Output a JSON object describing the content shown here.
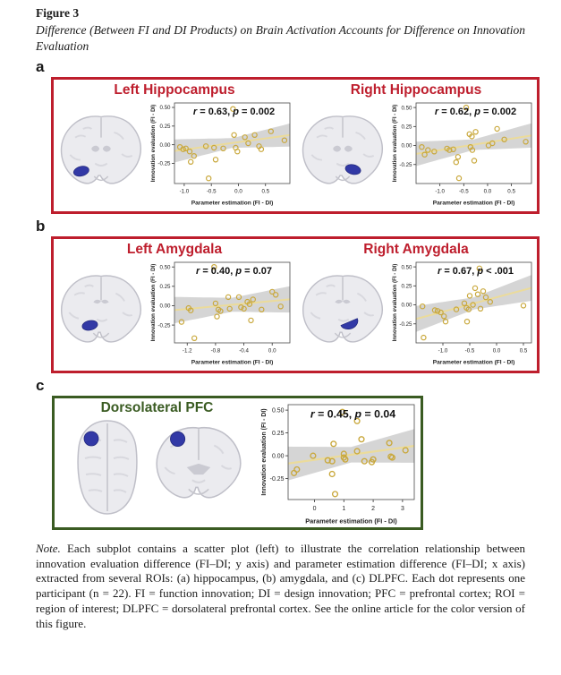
{
  "header": {
    "figure_label": "Figure 3",
    "figure_caption": "Difference (Between FI and DI Products) on Brain Activation Accounts for Difference on Innovation Evaluation"
  },
  "panels": [
    {
      "label": "a",
      "accent": "red",
      "charts": [
        0,
        1
      ]
    },
    {
      "label": "b",
      "accent": "red",
      "charts": [
        2,
        3
      ]
    },
    {
      "label": "c",
      "accent": "green",
      "charts": [
        4
      ]
    }
  ],
  "colors": {
    "accent-red": "#BE1E2D",
    "accent-green": "#3A5B22",
    "point": "#C9A83C",
    "fit-line": "#EBDB9B",
    "band": "#D3D3D3",
    "roi": "#3239A6"
  },
  "chart_data": [
    {
      "id": "left-hippocampus",
      "type": "scatter",
      "title": "Left Hippocampus",
      "stats": "r = 0.63, p = 0.002",
      "xlabel": "Parameter estimation (FI - DI)",
      "ylabel": "Innovation evaluation (FI - DI)",
      "xlim": [
        -1.18,
        0.95
      ],
      "ylim": [
        -0.52,
        0.56
      ],
      "xticks": [
        -1.0,
        -0.5,
        0.0,
        0.5
      ],
      "xtick_labels": [
        "-1.0",
        "-0.5",
        "0.0",
        "0.5"
      ],
      "yticks": [
        0.5,
        0.25,
        0.0,
        -0.25
      ],
      "ytick_labels": [
        "0.50",
        "0.25",
        "0.00",
        "-0.25"
      ],
      "fit": {
        "slope": 0.1,
        "intercept": 0.035,
        "band_mid": 0.065,
        "band_end": 0.155
      },
      "points": [
        [
          -1.08,
          -0.03
        ],
        [
          -1.02,
          -0.06
        ],
        [
          -0.97,
          -0.05
        ],
        [
          -0.9,
          -0.09
        ],
        [
          -0.88,
          -0.23
        ],
        [
          -0.82,
          -0.15
        ],
        [
          -0.6,
          -0.02
        ],
        [
          -0.55,
          -0.45
        ],
        [
          -0.45,
          -0.04
        ],
        [
          -0.42,
          -0.2
        ],
        [
          -0.28,
          -0.05
        ],
        [
          -0.1,
          0.48
        ],
        [
          -0.08,
          0.13
        ],
        [
          -0.05,
          -0.04
        ],
        [
          -0.02,
          -0.09
        ],
        [
          0.12,
          0.1
        ],
        [
          0.18,
          0.02
        ],
        [
          0.3,
          0.13
        ],
        [
          0.38,
          -0.02
        ],
        [
          0.42,
          -0.06
        ],
        [
          0.6,
          0.18
        ],
        [
          0.85,
          0.06
        ]
      ],
      "brain_view": "coronal",
      "roi": "left hippocampus"
    },
    {
      "id": "right-hippocampus",
      "type": "scatter",
      "title": "Right Hippocampus",
      "stats": "r = 0.62, p = 0.002",
      "xlabel": "Parameter estimation (FI - DI)",
      "ylabel": "Innovation evaluation (FI - DI)",
      "xlim": [
        -1.5,
        0.92
      ],
      "ylim": [
        -0.5,
        0.56
      ],
      "xticks": [
        -1.0,
        -0.5,
        0.0,
        0.5
      ],
      "xtick_labels": [
        "-1.0",
        "-0.5",
        "0.0",
        "0.5"
      ],
      "yticks": [
        0.5,
        0.25,
        0.0,
        -0.25
      ],
      "ytick_labels": [
        "0.50",
        "0.25",
        "0.00",
        "-0.25"
      ],
      "fit": {
        "slope": 0.1,
        "intercept": 0.04,
        "band_mid": 0.07,
        "band_end": 0.16
      },
      "points": [
        [
          -1.38,
          -0.02
        ],
        [
          -1.32,
          -0.12
        ],
        [
          -1.25,
          -0.06
        ],
        [
          -1.12,
          -0.08
        ],
        [
          -0.85,
          -0.04
        ],
        [
          -0.8,
          -0.06
        ],
        [
          -0.72,
          -0.05
        ],
        [
          -0.62,
          -0.15
        ],
        [
          -0.66,
          -0.22
        ],
        [
          -0.6,
          -0.43
        ],
        [
          -0.45,
          0.5
        ],
        [
          -0.38,
          0.15
        ],
        [
          -0.33,
          0.12
        ],
        [
          -0.36,
          -0.02
        ],
        [
          -0.32,
          -0.06
        ],
        [
          -0.25,
          0.18
        ],
        [
          -0.28,
          -0.2
        ],
        [
          0.02,
          0.0
        ],
        [
          0.1,
          0.03
        ],
        [
          0.2,
          0.22
        ],
        [
          0.35,
          0.08
        ],
        [
          0.8,
          0.05
        ]
      ],
      "brain_view": "coronal",
      "roi": "right hippocampus"
    },
    {
      "id": "left-amygdala",
      "type": "scatter",
      "title": "Left Amygdala",
      "stats": "r = 0.40, p = 0.07",
      "xlabel": "Parameter estimation (FI - DI)",
      "ylabel": "Innovation evaluation (FI - DI)",
      "xlim": [
        -1.38,
        0.25
      ],
      "ylim": [
        -0.48,
        0.56
      ],
      "xticks": [
        -1.2,
        -0.8,
        -0.4,
        0.0
      ],
      "xtick_labels": [
        "-1.2",
        "-0.8",
        "-0.4",
        "0.0"
      ],
      "yticks": [
        0.5,
        0.25,
        0.0,
        -0.25
      ],
      "ytick_labels": [
        "0.50",
        "0.25",
        "0.00",
        "-0.25"
      ],
      "fit": {
        "slope": 0.085,
        "intercept": 0.06,
        "band_mid": 0.09,
        "band_end": 0.17
      },
      "points": [
        [
          -1.28,
          -0.21
        ],
        [
          -1.18,
          -0.03
        ],
        [
          -1.15,
          -0.06
        ],
        [
          -1.1,
          -0.42
        ],
        [
          -0.82,
          0.5
        ],
        [
          -0.8,
          0.03
        ],
        [
          -0.76,
          -0.05
        ],
        [
          -0.73,
          -0.07
        ],
        [
          -0.78,
          -0.14
        ],
        [
          -0.62,
          0.11
        ],
        [
          -0.6,
          -0.04
        ],
        [
          -0.47,
          0.11
        ],
        [
          -0.44,
          -0.02
        ],
        [
          -0.4,
          -0.04
        ],
        [
          -0.35,
          0.05
        ],
        [
          -0.32,
          0.02
        ],
        [
          -0.3,
          -0.19
        ],
        [
          -0.27,
          0.08
        ],
        [
          -0.15,
          -0.05
        ],
        [
          0.0,
          0.18
        ],
        [
          0.05,
          0.14
        ],
        [
          0.12,
          -0.01
        ]
      ],
      "brain_view": "coronal",
      "roi": "left amygdala"
    },
    {
      "id": "right-amygdala",
      "type": "scatter",
      "title": "Right Amygdala",
      "stats": "r = 0.67, p < .001",
      "xlabel": "Parameter estimation (FI - DI)",
      "ylabel": "Innovation evaluation (FI - DI)",
      "xlim": [
        -1.5,
        0.65
      ],
      "ylim": [
        -0.5,
        0.56
      ],
      "xticks": [
        -1.0,
        -0.5,
        0.0,
        0.5
      ],
      "xtick_labels": [
        "-1.0",
        "-0.5",
        "0.0",
        "0.5"
      ],
      "yticks": [
        0.5,
        0.25,
        0.0,
        -0.25
      ],
      "ytick_labels": [
        "0.50",
        "0.25",
        "0.00",
        "-0.25"
      ],
      "fit": {
        "slope": 0.19,
        "intercept": 0.1,
        "band_mid": 0.08,
        "band_end": 0.17
      },
      "points": [
        [
          -1.38,
          -0.02
        ],
        [
          -1.36,
          -0.43
        ],
        [
          -1.15,
          -0.07
        ],
        [
          -1.1,
          -0.08
        ],
        [
          -1.04,
          -0.1
        ],
        [
          -0.98,
          -0.15
        ],
        [
          -0.95,
          -0.22
        ],
        [
          -0.75,
          -0.06
        ],
        [
          -0.6,
          0.02
        ],
        [
          -0.56,
          -0.04
        ],
        [
          -0.52,
          -0.06
        ],
        [
          -0.5,
          0.12
        ],
        [
          -0.55,
          -0.22
        ],
        [
          -0.44,
          0.0
        ],
        [
          -0.4,
          0.22
        ],
        [
          -0.35,
          0.14
        ],
        [
          -0.32,
          0.48
        ],
        [
          -0.3,
          -0.05
        ],
        [
          -0.25,
          0.18
        ],
        [
          -0.2,
          0.1
        ],
        [
          -0.12,
          0.04
        ],
        [
          0.5,
          -0.01
        ]
      ],
      "brain_view": "coronal",
      "roi": "right amygdala"
    },
    {
      "id": "dlpfc",
      "type": "scatter",
      "title": "Dorsolateral PFC",
      "stats": "r = 0.45, p = 0.04",
      "xlabel": "Parameter estimation (FI - DI)",
      "ylabel": "Innovation evaluation (FI - DI)",
      "xlim": [
        -0.9,
        3.4
      ],
      "ylim": [
        -0.48,
        0.56
      ],
      "xticks": [
        0,
        1,
        2,
        3
      ],
      "xtick_labels": [
        "0",
        "1",
        "2",
        "3"
      ],
      "yticks": [
        0.5,
        0.25,
        0.0,
        -0.25
      ],
      "ytick_labels": [
        "0.50",
        "0.25",
        "0.00",
        "-0.25"
      ],
      "fit": {
        "slope": 0.045,
        "intercept": -0.045,
        "band_mid": 0.085,
        "band_end": 0.185
      },
      "points": [
        [
          -0.7,
          -0.19
        ],
        [
          -0.6,
          -0.15
        ],
        [
          -0.05,
          0.0
        ],
        [
          0.45,
          -0.05
        ],
        [
          0.6,
          -0.06
        ],
        [
          0.65,
          0.13
        ],
        [
          0.6,
          -0.2
        ],
        [
          0.7,
          -0.42
        ],
        [
          0.95,
          0.48
        ],
        [
          1.0,
          0.02
        ],
        [
          1.0,
          -0.02
        ],
        [
          1.05,
          -0.04
        ],
        [
          1.45,
          0.05
        ],
        [
          1.45,
          0.38
        ],
        [
          1.6,
          0.18
        ],
        [
          1.7,
          -0.06
        ],
        [
          1.95,
          -0.07
        ],
        [
          2.0,
          -0.04
        ],
        [
          2.55,
          0.14
        ],
        [
          2.6,
          -0.01
        ],
        [
          2.65,
          -0.02
        ],
        [
          3.1,
          0.06
        ]
      ],
      "brain_view": "axial + coronal",
      "roi": "left dorsolateral prefrontal cortex"
    }
  ],
  "footer": {
    "note_label": "Note.",
    "note_text": "Each subplot contains a scatter plot (left) to illustrate the correlation relationship between innovation evaluation difference (FI–DI; y axis) and parameter estimation difference (FI–DI; x axis) extracted from several ROIs: (a) hippocampus, (b) amygdala, and (c) DLPFC. Each dot represents one participant (n = 22). FI = function innovation; DI = design innovation; PFC = prefrontal cortex; ROI = region of interest; DLPFC = dorsolateral prefrontal cortex. See the online article for the color version of this figure."
  }
}
